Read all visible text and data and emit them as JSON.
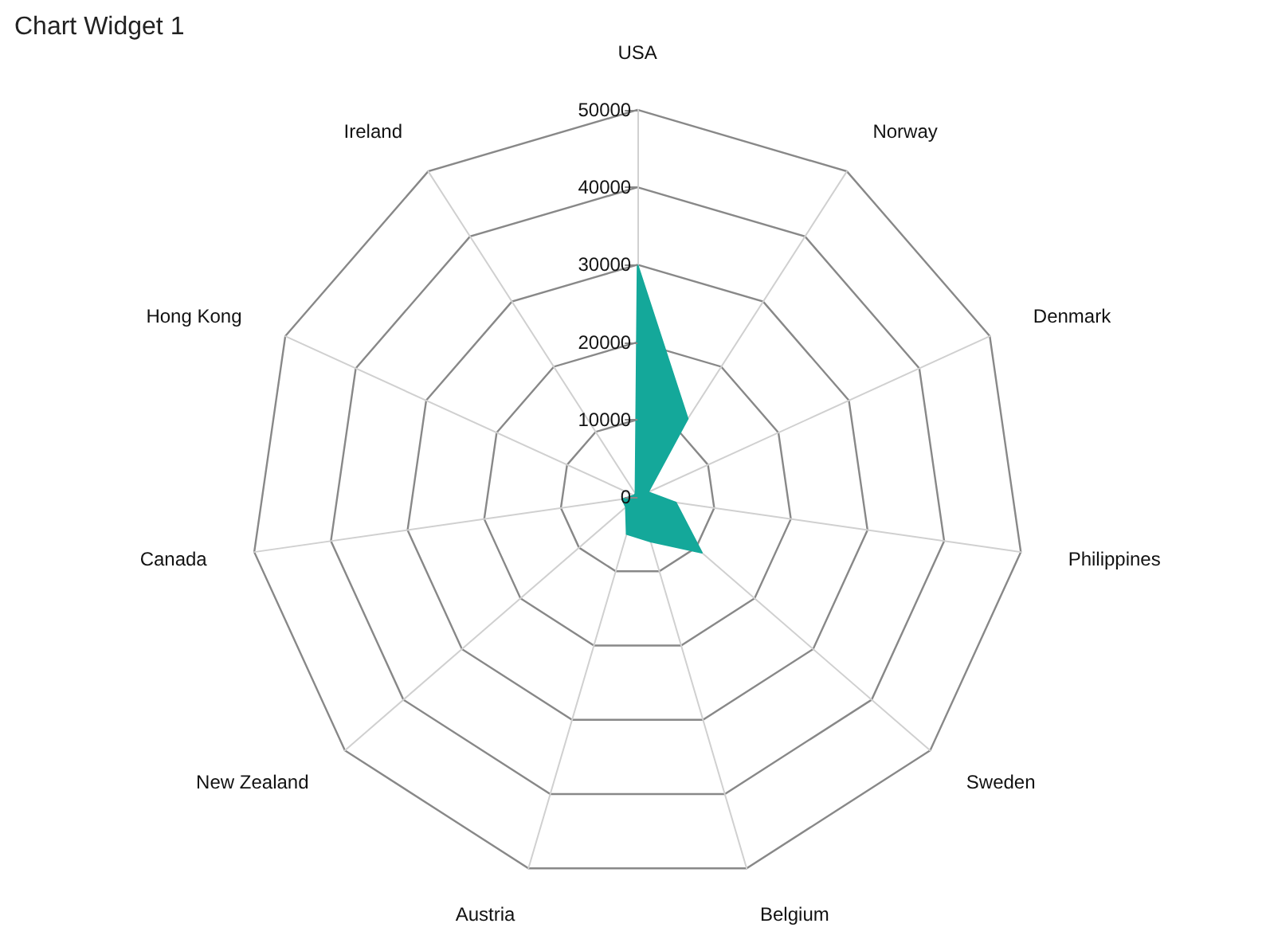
{
  "chart_data": {
    "type": "radar",
    "title": "Chart Widget 1",
    "categories": [
      "USA",
      "Norway",
      "Denmark",
      "Philippines",
      "Sweden",
      "Belgium",
      "Austria",
      "New Zealand",
      "Canada",
      "Hong Kong",
      "Ireland"
    ],
    "series": [
      {
        "color": "#14a89a",
        "values": [
          30000,
          12000,
          1500,
          5000,
          11000,
          6000,
          5000,
          2000,
          2000,
          500,
          500
        ]
      }
    ],
    "ylim": [
      0,
      50000
    ],
    "yticks": [
      0,
      10000,
      20000,
      30000,
      40000,
      50000
    ],
    "marker": "none"
  }
}
